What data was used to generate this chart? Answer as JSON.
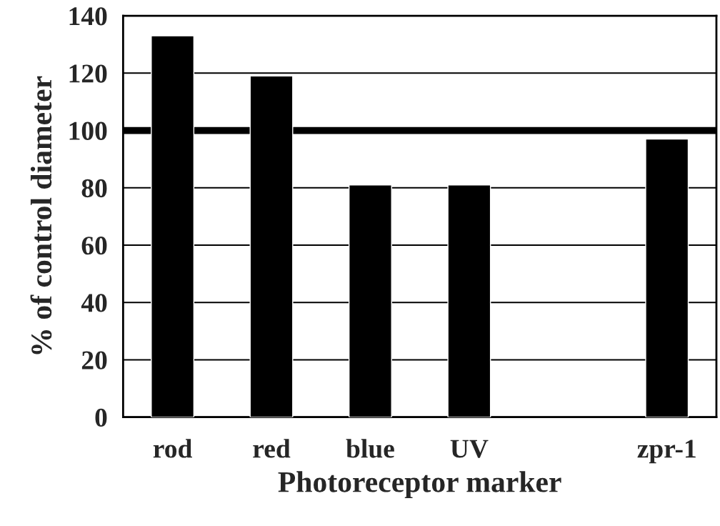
{
  "chart_data": {
    "type": "bar",
    "xlabel": "Photoreceptor marker",
    "ylabel": "% of control diameter",
    "categories": [
      "rod",
      "red",
      "blue",
      "UV",
      null,
      "zpr-1"
    ],
    "values": [
      133,
      119,
      81,
      81,
      null,
      97
    ],
    "color": "#000000",
    "ylim": [
      0,
      140
    ],
    "yticks": [
      0,
      20,
      40,
      60,
      80,
      100,
      120,
      140
    ],
    "grid": "y",
    "ref_lines": [
      {
        "axis": "y",
        "value": 100,
        "color": "#000000"
      }
    ]
  }
}
